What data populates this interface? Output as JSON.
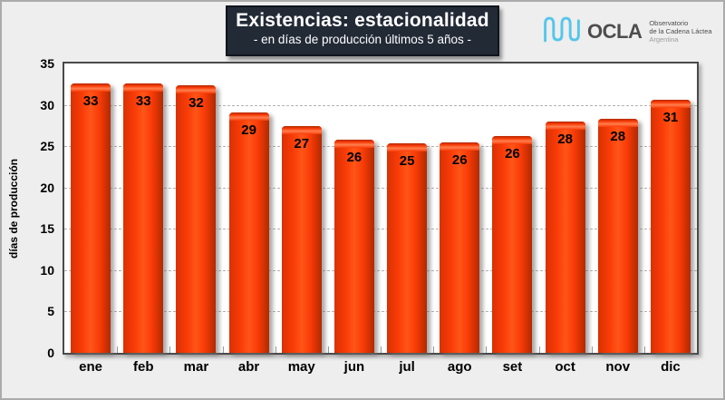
{
  "canvas": {
    "background": "#eeeeee",
    "frame_border": "#ababab"
  },
  "header": {
    "title": "Existencias: estacionalidad",
    "subtitle": "- en días de producción últimos 5 años -",
    "title_box_bg": "#222a36",
    "title_text_color": "#ffffff"
  },
  "logo": {
    "wordmark": "OCLA",
    "org_line1": "Observatorio",
    "org_line2": "de la Cadena Láctea",
    "country": "Argentina",
    "wave_color": "#56c6ea",
    "wordmark_color": "#4d4d4d",
    "text_color": "#4c4c4c",
    "country_color": "#9d9d9d"
  },
  "chart_data": {
    "type": "bar",
    "title": "Existencias: estacionalidad",
    "subtitle": "- en días de producción últimos 5 años -",
    "categories": [
      "ene",
      "feb",
      "mar",
      "abr",
      "may",
      "jun",
      "jul",
      "ago",
      "set",
      "oct",
      "nov",
      "dic"
    ],
    "values": [
      33,
      33,
      32,
      29,
      27,
      26,
      25,
      26,
      26,
      28,
      28,
      31
    ],
    "bar_heights_estimated": [
      32.6,
      32.6,
      32.4,
      29.1,
      27.4,
      25.8,
      25.4,
      25.5,
      26.2,
      28.0,
      28.3,
      30.6
    ],
    "xlabel": "",
    "ylabel": "días de producción",
    "ylim": [
      0,
      35
    ],
    "yticks": [
      0,
      5,
      10,
      15,
      20,
      25,
      30,
      35
    ],
    "grid": "horizontal-dashed",
    "gridline_color": "#b2b2b2",
    "legend": "none",
    "data_label_position": "inside-top",
    "data_label_color": "#000000",
    "bar_color": "#f93b07",
    "bar_edge_left": "#d93104",
    "bar_edge_dark": "#b22900",
    "bar_highlight": "#ff7f4f",
    "plot_background": "#ffffff",
    "plot_border_color": "#4a4a4a"
  }
}
